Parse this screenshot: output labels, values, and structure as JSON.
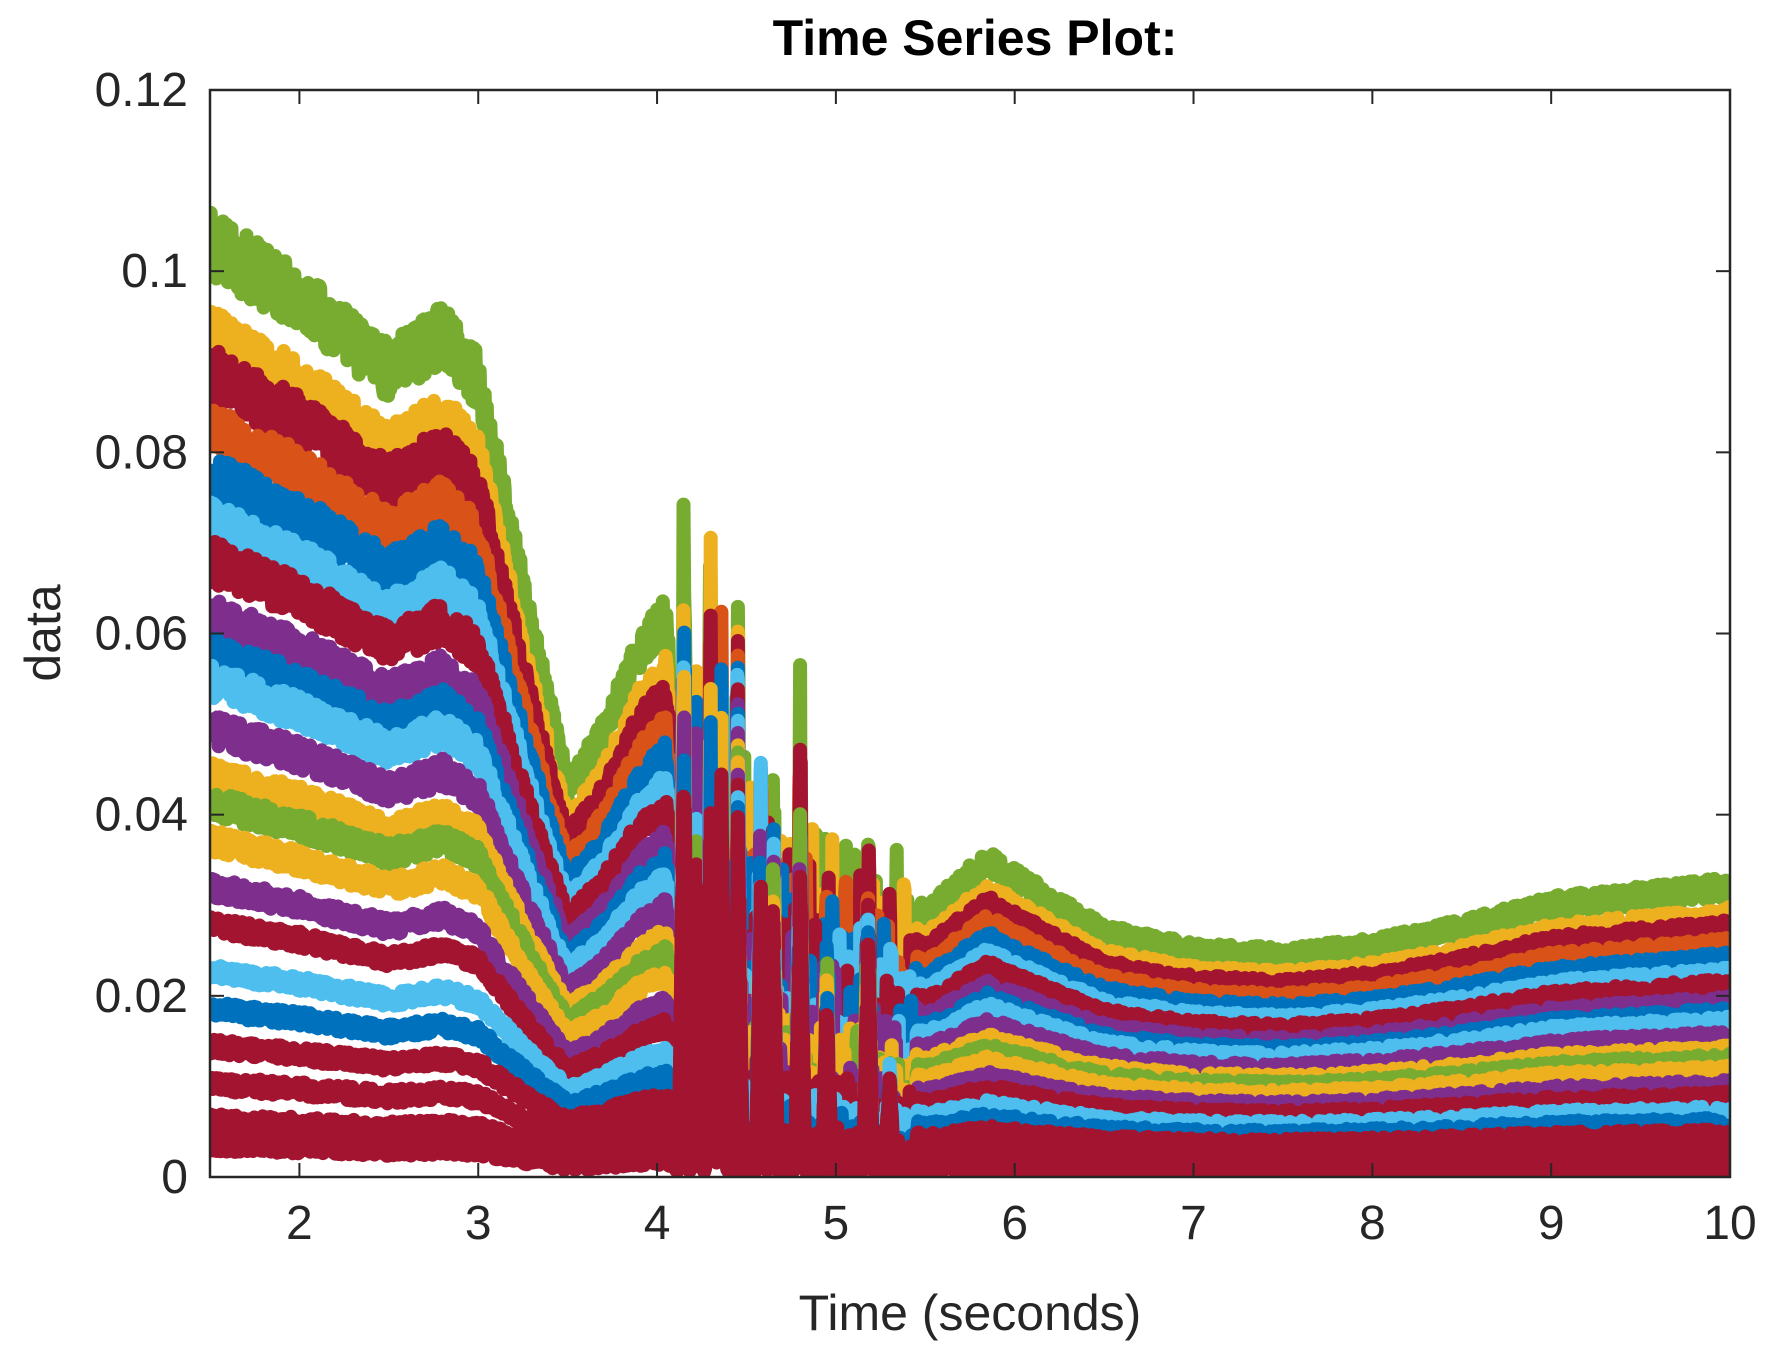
{
  "chart_data": {
    "type": "line",
    "title": "Time Series Plot:",
    "xlabel": "Time (seconds)",
    "ylabel": "data",
    "xlim": [
      1.5,
      10
    ],
    "ylim": [
      0,
      0.12
    ],
    "xticks": [
      2,
      3,
      4,
      5,
      6,
      7,
      8,
      9,
      10
    ],
    "xtick_labels": [
      "2",
      "3",
      "4",
      "5",
      "6",
      "7",
      "8",
      "9",
      "10"
    ],
    "yticks": [
      0,
      0.02,
      0.04,
      0.06,
      0.08,
      0.1,
      0.12
    ],
    "ytick_labels": [
      "0",
      "0.02",
      "0.04",
      "0.06",
      "0.08",
      "0.1",
      "0.12"
    ],
    "grid": false,
    "legend": "none",
    "colors": {
      "axes": "#262626",
      "series_palette": [
        "#0072BD",
        "#D95319",
        "#EDB120",
        "#7E2F8E",
        "#77AC30",
        "#4DBEEE",
        "#A2142F"
      ]
    },
    "envelope": {
      "x": [
        1.5,
        2.0,
        2.5,
        2.8,
        3.0,
        3.3,
        3.5,
        3.7,
        3.9,
        4.05,
        4.1,
        5.45,
        5.5,
        5.85,
        6.0,
        6.5,
        7.0,
        7.5,
        8.0,
        8.5,
        9.0,
        9.5,
        10.0
      ],
      "top": [
        0.103,
        0.097,
        0.089,
        0.093,
        0.088,
        0.06,
        0.043,
        0.049,
        0.058,
        0.062,
        0.046,
        0.03,
        0.029,
        0.035,
        0.033,
        0.027,
        0.025,
        0.0245,
        0.0255,
        0.0275,
        0.03,
        0.031,
        0.032
      ]
    },
    "series_levels": [
      1.0,
      0.9,
      0.86,
      0.8,
      0.75,
      0.7,
      0.66,
      0.6,
      0.56,
      0.53,
      0.48,
      0.43,
      0.4,
      0.36,
      0.31,
      0.27,
      0.22,
      0.18,
      0.14,
      0.1,
      0.06,
      0.035
    ],
    "series": [
      {
        "color": "#77AC30",
        "level": 1.0
      },
      {
        "color": "#EDB120",
        "level": 0.9
      },
      {
        "color": "#A2142F",
        "level": 0.86
      },
      {
        "color": "#D95319",
        "level": 0.8
      },
      {
        "color": "#0072BD",
        "level": 0.75
      },
      {
        "color": "#4DBEEE",
        "level": 0.7
      },
      {
        "color": "#A2142F",
        "level": 0.66
      },
      {
        "color": "#7E2F8E",
        "level": 0.6
      },
      {
        "color": "#0072BD",
        "level": 0.56
      },
      {
        "color": "#4DBEEE",
        "level": 0.53
      },
      {
        "color": "#7E2F8E",
        "level": 0.48
      },
      {
        "color": "#EDB120",
        "level": 0.43
      },
      {
        "color": "#77AC30",
        "level": 0.4
      },
      {
        "color": "#EDB120",
        "level": 0.36
      },
      {
        "color": "#7E2F8E",
        "level": 0.31
      },
      {
        "color": "#A2142F",
        "level": 0.27
      },
      {
        "color": "#4DBEEE",
        "level": 0.22
      },
      {
        "color": "#0072BD",
        "level": 0.18
      },
      {
        "color": "#A2142F",
        "level": 0.14
      },
      {
        "color": "#A2142F",
        "level": 0.1
      },
      {
        "color": "#A2142F",
        "level": 0.06
      },
      {
        "color": "#A2142F",
        "level": 0.035
      }
    ],
    "spikes": [
      {
        "x": 4.15,
        "y": 0.081
      },
      {
        "x": 4.22,
        "y": 0.06
      },
      {
        "x": 4.3,
        "y": 0.08
      },
      {
        "x": 4.36,
        "y": 0.074
      },
      {
        "x": 4.45,
        "y": 0.07
      },
      {
        "x": 4.58,
        "y": 0.054
      },
      {
        "x": 4.65,
        "y": 0.052
      },
      {
        "x": 4.8,
        "y": 0.058
      },
      {
        "x": 4.95,
        "y": 0.035
      },
      {
        "x": 5.18,
        "y": 0.045
      },
      {
        "x": 5.3,
        "y": 0.02
      },
      {
        "x": 5.48,
        "y": 0.034
      }
    ]
  }
}
